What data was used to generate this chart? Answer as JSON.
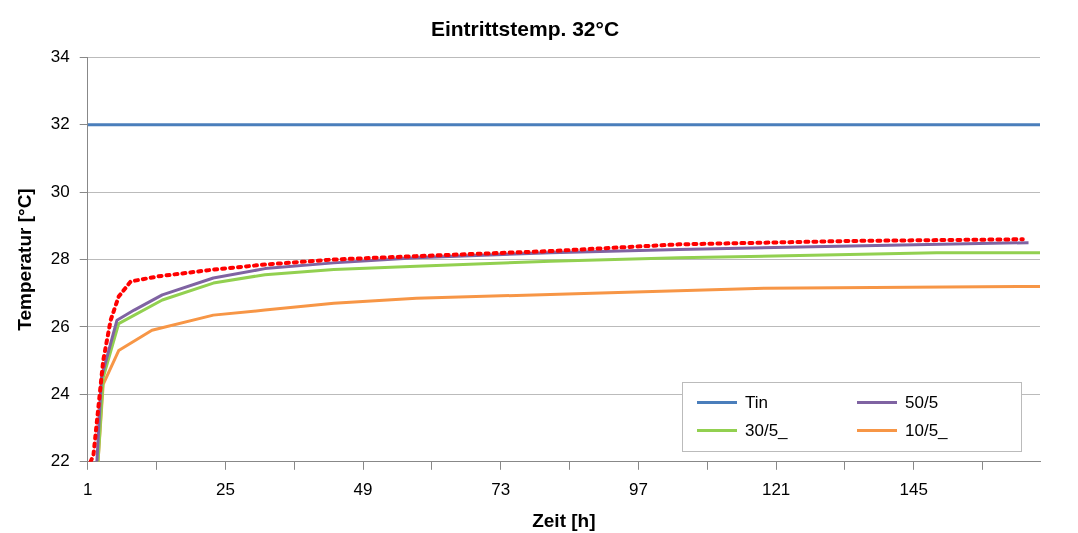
{
  "chart_data": {
    "type": "line",
    "title": "Eintrittstemp. 32°C",
    "xlabel": "Zeit [h]",
    "ylabel": "Temperatur [°C]",
    "xlim": [
      1,
      167
    ],
    "xticks": [
      1,
      {
        "value": 13,
        "label": null
      },
      25,
      {
        "value": 37,
        "label": null
      },
      49,
      {
        "value": 61,
        "label": null
      },
      73,
      {
        "value": 85,
        "label": null
      },
      97,
      {
        "value": 109,
        "label": null
      },
      121,
      {
        "value": 133,
        "label": null
      },
      145,
      {
        "value": 157,
        "label": null
      }
    ],
    "ylim": [
      22,
      34
    ],
    "yticks": [
      22,
      24,
      26,
      28,
      30,
      32,
      34
    ],
    "grid": "y",
    "legend": "bottom right",
    "marker": "none",
    "series": [
      {
        "name": "Tin",
        "color": "#4a7ebb",
        "line_style": "solid",
        "x": [
          1,
          167
        ],
        "values": [
          32,
          32
        ]
      },
      {
        "color": "#ff0000",
        "line_style": "dotted",
        "x": [
          1.5,
          2,
          3.7,
          5,
          6.4,
          8.5,
          13.3,
          22.9,
          31.9,
          43.9,
          58.3,
          81.7,
          104,
          134,
          164
        ],
        "values": [
          22,
          22.2,
          25.0,
          26.2,
          26.9,
          27.35,
          27.5,
          27.7,
          27.85,
          28.0,
          28.1,
          28.25,
          28.45,
          28.55,
          28.6
        ]
      },
      {
        "name": "50/5",
        "color": "#7f63a2",
        "line_style": "solid",
        "x": [
          2.6,
          3.4,
          6.1,
          9.1,
          14,
          22.9,
          31.9,
          43.9,
          58.3,
          81.7,
          104,
          134,
          165
        ],
        "values": [
          22,
          24.5,
          26.2,
          26.5,
          26.95,
          27.45,
          27.73,
          27.9,
          28.05,
          28.2,
          28.3,
          28.4,
          28.5
        ]
      },
      {
        "name": "30/5_",
        "color": "#92d050",
        "line_style": "solid",
        "x": [
          2.8,
          3.7,
          6.4,
          14,
          22.9,
          31.9,
          43.9,
          58.3,
          81.7,
          104,
          149,
          167
        ],
        "values": [
          22,
          24.5,
          26.1,
          26.8,
          27.3,
          27.55,
          27.7,
          27.8,
          27.95,
          28.05,
          28.2,
          28.2
        ]
      },
      {
        "name": "10/5_",
        "color": "#f79646",
        "line_style": "solid",
        "x": [
          2.8,
          3.7,
          6.4,
          12.2,
          22.9,
          31.9,
          43.9,
          58.3,
          89,
          119,
          165,
          167
        ],
        "values": [
          22,
          24.3,
          25.3,
          25.9,
          26.35,
          26.5,
          26.7,
          26.85,
          27.0,
          27.15,
          27.2,
          27.2
        ]
      }
    ]
  }
}
